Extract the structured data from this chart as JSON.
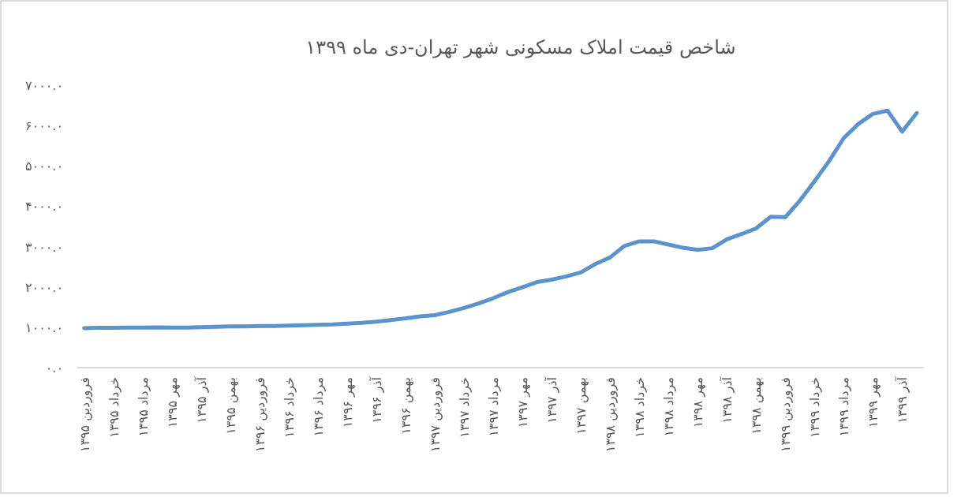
{
  "chart_data": {
    "type": "line",
    "title": "شاخص قیمت املاک مسکونی شهر تهران-دی ماه ۱۳۹۹",
    "categories": [
      "فروردین ۱۳۹۵",
      null,
      "خرداد ۱۳۹۵",
      null,
      "مرداد ۱۳۹۵",
      null,
      "مهر ۱۳۹۵",
      null,
      "آذر ۱۳۹۵",
      null,
      "بهمن ۱۳۹۵",
      null,
      "فروردین ۱۳۹۶",
      null,
      "خرداد ۱۳۹۶",
      null,
      "مرداد ۱۳۹۶",
      null,
      "مهر ۱۳۹۶",
      null,
      "آذر ۱۳۹۶",
      null,
      "بهمن ۱۳۹۶",
      null,
      "فروردین ۱۳۹۷",
      null,
      "خرداد ۱۳۹۷",
      null,
      "مرداد ۱۳۹۷",
      null,
      "مهر ۱۳۹۷",
      null,
      "آذر ۱۳۹۷",
      null,
      "بهمن ۱۳۹۷",
      null,
      "فروردین ۱۳۹۸",
      null,
      "خرداد ۱۳۹۸",
      null,
      "مرداد ۱۳۹۸",
      null,
      "مهر ۱۳۹۸",
      null,
      "آذر ۱۳۹۸",
      null,
      "بهمن ۱۳۹۸",
      null,
      "فروردین ۱۳۹۹",
      null,
      "خرداد ۱۳۹۹",
      null,
      "مرداد ۱۳۹۹",
      null,
      "مهر ۱۳۹۹",
      null,
      "آذر ۱۳۹۹",
      null
    ],
    "values": [
      980,
      985,
      985,
      990,
      990,
      995,
      990,
      990,
      1000,
      1010,
      1020,
      1020,
      1030,
      1030,
      1040,
      1050,
      1060,
      1070,
      1090,
      1110,
      1140,
      1180,
      1220,
      1270,
      1300,
      1380,
      1480,
      1590,
      1720,
      1870,
      1990,
      2120,
      2180,
      2260,
      2360,
      2570,
      2730,
      3020,
      3130,
      3130,
      3050,
      2970,
      2920,
      2960,
      3180,
      3310,
      3450,
      3740,
      3730,
      4140,
      4620,
      5120,
      5690,
      6040,
      6290,
      6370,
      5850,
      6310
    ],
    "color": "#5b93cc",
    "ylim": [
      0,
      7000
    ],
    "yticks": [
      {
        "value": 0,
        "label": "۰.۰"
      },
      {
        "value": 1000,
        "label": "۱۰۰۰.۰"
      },
      {
        "value": 2000,
        "label": "۲۰۰۰.۰"
      },
      {
        "value": 3000,
        "label": "۳۰۰۰.۰"
      },
      {
        "value": 4000,
        "label": "۴۰۰۰.۰"
      },
      {
        "value": 5000,
        "label": "۵۰۰۰.۰"
      },
      {
        "value": 6000,
        "label": "۶۰۰۰.۰"
      },
      {
        "value": 7000,
        "label": "۷۰۰۰.۰"
      }
    ]
  }
}
